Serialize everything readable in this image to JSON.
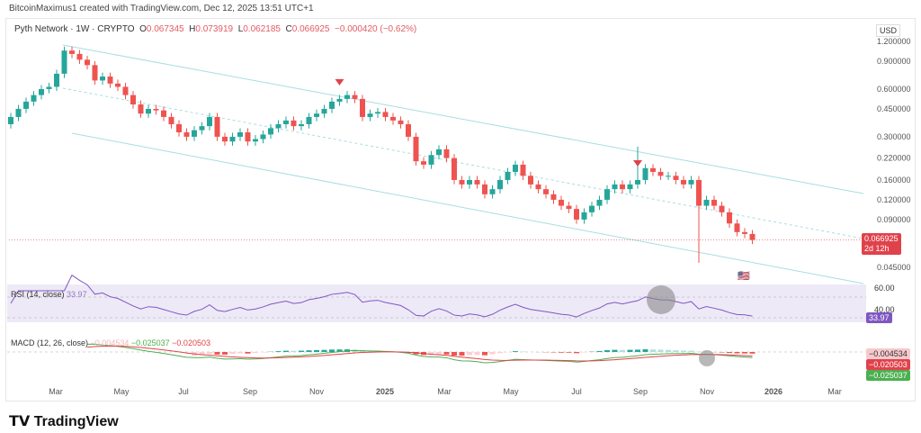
{
  "credit": "BitcoinMaximus1 created with TradingView.com, Dec 12, 2025 13:51 UTC+1",
  "legend": {
    "symbol": "Pyth Network · 1W · CRYPTO",
    "o_label": "O",
    "o": "0.067345",
    "h_label": "H",
    "h": "0.073919",
    "l_label": "L",
    "l": "0.062185",
    "c_label": "C",
    "c": "0.066925",
    "change": "−0.000420 (−0.62%)"
  },
  "currency": "USD",
  "price_ticks": [
    "1.200000",
    "0.900000",
    "0.600000",
    "0.450000",
    "0.300000",
    "0.220000",
    "0.160000",
    "0.120000",
    "0.090000",
    "0.045000"
  ],
  "last_price": {
    "value": "0.066925",
    "countdown": "2d 12h",
    "color": "#e0424b"
  },
  "rsi": {
    "title": "RSI (14, close)",
    "value": "33.97",
    "ticks": [
      "60.00",
      "40.00"
    ],
    "color": "#7e57c2"
  },
  "macd": {
    "title": "MACD (12, 26, close)",
    "hist": "−0.004534",
    "macd": "−0.025037",
    "signal": "−0.020503",
    "hist_color": "#f7c9cc",
    "signal_color": "#e0424b",
    "macd_color": "#4caf50"
  },
  "time_ticks": [
    "Mar",
    "May",
    "Jul",
    "Sep",
    "Nov",
    "2025",
    "Mar",
    "May",
    "Jul",
    "Sep",
    "Nov",
    "2026",
    "Mar"
  ],
  "logo": "TradingView",
  "chart_data": {
    "type": "candlestick",
    "title": "Pyth Network · 1W · CRYPTO",
    "yscale": "log",
    "ylim": [
      0.04,
      1.3
    ],
    "x_start": "2024-02",
    "x_end": "2025-12",
    "closes": [
      0.4,
      0.45,
      0.5,
      0.55,
      0.6,
      0.62,
      0.75,
      1.05,
      1.0,
      0.92,
      0.85,
      0.68,
      0.72,
      0.65,
      0.62,
      0.55,
      0.48,
      0.42,
      0.45,
      0.44,
      0.4,
      0.36,
      0.32,
      0.3,
      0.33,
      0.35,
      0.4,
      0.3,
      0.28,
      0.3,
      0.32,
      0.28,
      0.29,
      0.31,
      0.34,
      0.36,
      0.38,
      0.35,
      0.36,
      0.4,
      0.42,
      0.45,
      0.5,
      0.52,
      0.55,
      0.52,
      0.4,
      0.42,
      0.43,
      0.4,
      0.38,
      0.36,
      0.3,
      0.21,
      0.2,
      0.23,
      0.25,
      0.22,
      0.16,
      0.15,
      0.16,
      0.15,
      0.13,
      0.14,
      0.16,
      0.18,
      0.2,
      0.17,
      0.15,
      0.14,
      0.13,
      0.12,
      0.11,
      0.105,
      0.09,
      0.1,
      0.11,
      0.12,
      0.14,
      0.15,
      0.14,
      0.15,
      0.16,
      0.19,
      0.18,
      0.17,
      0.17,
      0.16,
      0.15,
      0.16,
      0.11,
      0.12,
      0.11,
      0.1,
      0.085,
      0.075,
      0.073,
      0.067
    ],
    "wick_low_override": {
      "90": 0.048
    },
    "wick_high_override": {
      "82": 0.26
    },
    "signals": [
      {
        "type": "sell-arrow",
        "index": 43
      },
      {
        "type": "sell-arrow",
        "index": 82
      }
    ]
  }
}
